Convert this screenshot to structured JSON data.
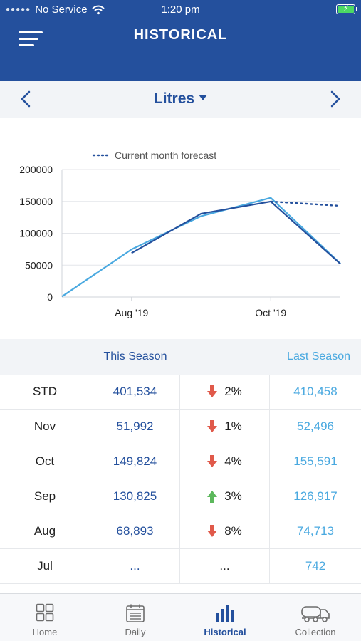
{
  "status_bar": {
    "carrier": "No Service",
    "time": "1:20 pm"
  },
  "header": {
    "title": "HISTORICAL"
  },
  "selector": {
    "unit": "Litres"
  },
  "chart_data": {
    "type": "line",
    "legend": [
      {
        "name": "Current month forecast",
        "style": "dotted",
        "color": "#24509d"
      }
    ],
    "y_ticks": [
      "200000",
      "150000",
      "100000",
      "50000",
      "0"
    ],
    "ylim": [
      0,
      200000
    ],
    "x_ticks": [
      "Aug '19",
      "Oct '19"
    ],
    "x": [
      "Jul '19",
      "Aug '19",
      "Sep '19",
      "Oct '19",
      "Nov '19"
    ],
    "series": [
      {
        "color": "#4aa9e0",
        "x": [
          "Jul '19",
          "Aug '19",
          "Sep '19",
          "Oct '19",
          "Nov '19"
        ],
        "values": [
          742,
          74713,
          126917,
          155591,
          52496
        ]
      },
      {
        "color": "#24509d",
        "x": [
          "Aug '19",
          "Sep '19",
          "Oct '19",
          "Nov '19"
        ],
        "values": [
          68893,
          130825,
          149824,
          51992
        ]
      },
      {
        "name": "Current month forecast",
        "color": "#24509d",
        "style": "dotted",
        "x": [
          "Oct '19",
          "Nov '19"
        ],
        "values": [
          149824,
          143000
        ]
      }
    ],
    "grid": true
  },
  "table": {
    "this_season_label": "This Season",
    "last_season_label": "Last Season",
    "rows": [
      {
        "period": "STD",
        "this": "401,534",
        "direction": "down",
        "change": "2%",
        "last": "410,458"
      },
      {
        "period": "Nov",
        "this": "51,992",
        "direction": "down",
        "change": "1%",
        "last": "52,496"
      },
      {
        "period": "Oct",
        "this": "149,824",
        "direction": "down",
        "change": "4%",
        "last": "155,591"
      },
      {
        "period": "Sep",
        "this": "130,825",
        "direction": "up",
        "change": "3%",
        "last": "126,917"
      },
      {
        "period": "Aug",
        "this": "68,893",
        "direction": "down",
        "change": "8%",
        "last": "74,713"
      },
      {
        "period": "Jul",
        "this": "...",
        "direction": "none",
        "change": "...",
        "last": "742"
      }
    ]
  },
  "colors": {
    "brand": "#24509d",
    "last_season": "#4aa9e0",
    "down": "#e0594a",
    "up": "#5cb85c"
  },
  "tabs": [
    {
      "label": "Home",
      "icon": "grid-icon",
      "active": false
    },
    {
      "label": "Daily",
      "icon": "calendar-icon",
      "active": false
    },
    {
      "label": "Historical",
      "icon": "bar-chart-icon",
      "active": true
    },
    {
      "label": "Collection",
      "icon": "tanker-truck-icon",
      "active": false
    }
  ]
}
